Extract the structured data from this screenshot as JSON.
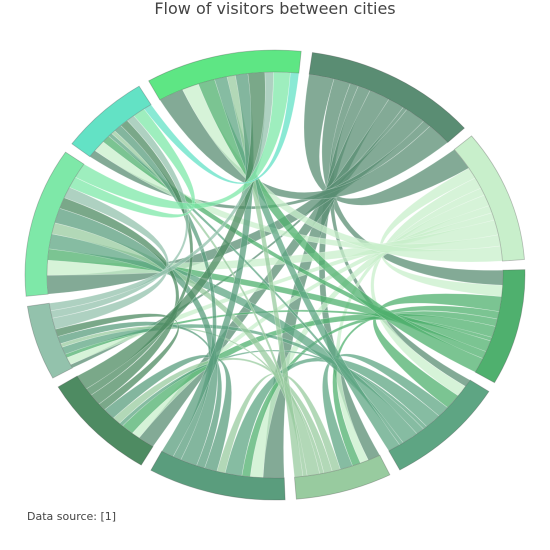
{
  "chart_data": {
    "type": "chord",
    "title": "Flow of visitors between cities",
    "annotation": "Data source: [1]",
    "nodes": [
      {
        "color": "#5a8d73"
      },
      {
        "color": "#c8efcb"
      },
      {
        "color": "#4fb06e"
      },
      {
        "color": "#5ea583"
      },
      {
        "color": "#98cb9f"
      },
      {
        "color": "#5a9d7d"
      },
      {
        "color": "#4e8b62"
      },
      {
        "color": "#93c2ac"
      },
      {
        "color": "#7ee8a8"
      },
      {
        "color": "#63e2c5"
      },
      {
        "color": "#5ee684"
      }
    ],
    "matrix": [
      [
        0,
        6,
        4,
        2,
        3,
        5,
        4,
        1,
        5,
        2,
        6
      ],
      [
        6,
        0,
        3,
        3,
        2,
        3,
        2,
        2,
        4,
        3,
        4
      ],
      [
        4,
        3,
        0,
        4,
        2,
        2,
        3,
        1,
        3,
        2,
        4
      ],
      [
        2,
        3,
        4,
        0,
        3,
        4,
        1,
        2,
        4,
        1,
        3
      ],
      [
        3,
        2,
        2,
        3,
        0,
        2,
        2,
        1,
        3,
        1,
        2
      ],
      [
        5,
        3,
        2,
        4,
        2,
        0,
        3,
        2,
        4,
        2,
        3
      ],
      [
        4,
        2,
        3,
        1,
        2,
        3,
        0,
        2,
        3,
        2,
        4
      ],
      [
        1,
        2,
        1,
        2,
        1,
        2,
        2,
        0,
        3,
        2,
        2
      ],
      [
        5,
        4,
        3,
        4,
        3,
        4,
        3,
        3,
        0,
        3,
        4
      ],
      [
        2,
        3,
        2,
        1,
        1,
        2,
        2,
        2,
        3,
        0,
        2
      ],
      [
        6,
        4,
        4,
        3,
        2,
        3,
        4,
        2,
        4,
        2,
        0
      ]
    ]
  }
}
